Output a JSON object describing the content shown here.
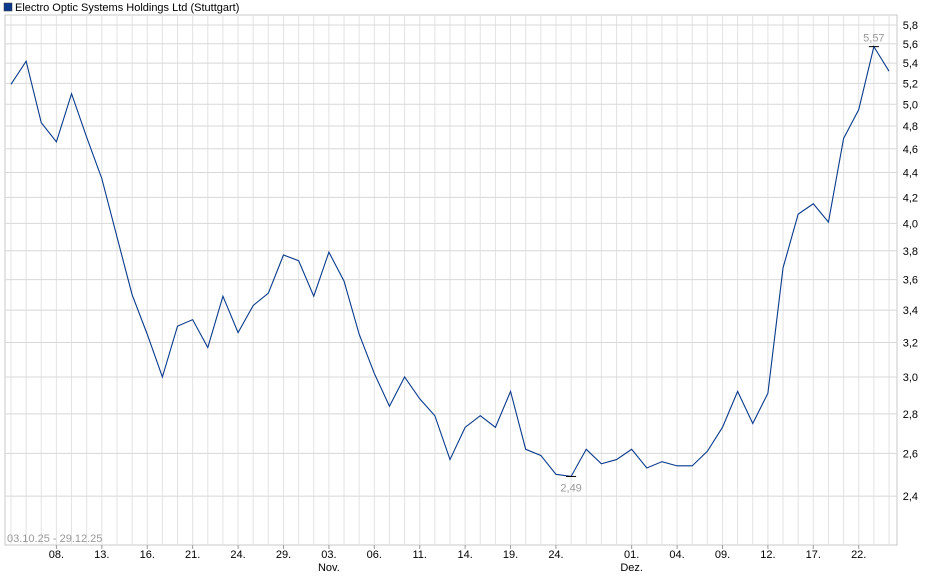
{
  "chart_data": {
    "type": "line",
    "title": "Electro Optic Systems Holdings Ltd (Stuttgart)",
    "date_range": "03.10.25 - 29.12.25",
    "x": [
      "2025-10-03",
      "2025-10-06",
      "2025-10-07",
      "2025-10-08",
      "2025-10-09",
      "2025-10-10",
      "2025-10-13",
      "2025-10-14",
      "2025-10-15",
      "2025-10-16",
      "2025-10-17",
      "2025-10-20",
      "2025-10-21",
      "2025-10-22",
      "2025-10-23",
      "2025-10-24",
      "2025-10-27",
      "2025-10-28",
      "2025-10-29",
      "2025-10-30",
      "2025-10-31",
      "2025-11-03",
      "2025-11-04",
      "2025-11-05",
      "2025-11-06",
      "2025-11-07",
      "2025-11-10",
      "2025-11-11",
      "2025-11-12",
      "2025-11-13",
      "2025-11-14",
      "2025-11-17",
      "2025-11-18",
      "2025-11-19",
      "2025-11-20",
      "2025-11-21",
      "2025-11-24",
      "2025-11-25",
      "2025-11-26",
      "2025-11-27",
      "2025-11-28",
      "2025-12-01",
      "2025-12-02",
      "2025-12-03",
      "2025-12-04",
      "2025-12-05",
      "2025-12-08",
      "2025-12-09",
      "2025-12-10",
      "2025-12-11",
      "2025-12-12",
      "2025-12-15",
      "2025-12-16",
      "2025-12-17",
      "2025-12-18",
      "2025-12-19",
      "2025-12-22",
      "2025-12-23",
      "2025-12-29"
    ],
    "values": [
      5.19,
      5.42,
      4.83,
      4.66,
      5.1,
      4.7,
      4.35,
      3.9,
      3.5,
      3.25,
      3.0,
      3.3,
      3.34,
      3.17,
      3.49,
      3.26,
      3.43,
      3.51,
      3.77,
      3.73,
      3.49,
      3.79,
      3.59,
      3.25,
      3.02,
      2.84,
      3.0,
      2.88,
      2.79,
      2.57,
      2.73,
      2.79,
      2.73,
      2.92,
      2.62,
      2.59,
      2.5,
      2.49,
      2.62,
      2.55,
      2.57,
      2.62,
      2.53,
      2.56,
      2.54,
      2.54,
      2.61,
      2.73,
      2.92,
      2.75,
      2.91,
      3.68,
      4.07,
      4.15,
      4.01,
      4.69,
      4.95,
      5.57,
      5.32
    ],
    "value_labels": [
      null,
      null,
      null,
      null,
      null,
      null,
      null,
      null,
      null,
      null,
      null,
      null,
      null,
      null,
      null,
      null,
      null,
      null,
      null,
      null,
      null,
      null,
      null,
      null,
      null,
      null,
      null,
      null,
      null,
      null,
      null,
      null,
      null,
      null,
      null,
      null,
      null,
      "2,49",
      null,
      null,
      null,
      null,
      null,
      null,
      null,
      null,
      null,
      null,
      null,
      null,
      null,
      null,
      null,
      null,
      null,
      null,
      null,
      "5,57",
      null
    ],
    "color": "#0a3a8c",
    "log_scale": true,
    "grid": true,
    "ylim": [
      2.19,
      5.91
    ],
    "yticks": [
      {
        "value": 2.4,
        "label": "2,4"
      },
      {
        "value": 2.6,
        "label": "2,6"
      },
      {
        "value": 2.8,
        "label": "2,8"
      },
      {
        "value": 3.0,
        "label": "3,0"
      },
      {
        "value": 3.2,
        "label": "3,2"
      },
      {
        "value": 3.4,
        "label": "3,4"
      },
      {
        "value": 3.6,
        "label": "3,6"
      },
      {
        "value": 3.8,
        "label": "3,8"
      },
      {
        "value": 4.0,
        "label": "4,0"
      },
      {
        "value": 4.2,
        "label": "4,2"
      },
      {
        "value": 4.4,
        "label": "4,4"
      },
      {
        "value": 4.6,
        "label": "4,6"
      },
      {
        "value": 4.8,
        "label": "4,8"
      },
      {
        "value": 5.0,
        "label": "5,0"
      },
      {
        "value": 5.2,
        "label": "5,2"
      },
      {
        "value": 5.4,
        "label": "5,4"
      },
      {
        "value": 5.6,
        "label": "5,6"
      },
      {
        "value": 5.8,
        "label": "5,8"
      }
    ],
    "xticks": [
      {
        "value": "2025-10-08",
        "label": "08."
      },
      {
        "value": "2025-10-13",
        "label": "13."
      },
      {
        "value": "2025-10-16",
        "label": "16."
      },
      {
        "value": "2025-10-21",
        "label": "21."
      },
      {
        "value": "2025-10-24",
        "label": "24."
      },
      {
        "value": "2025-10-29",
        "label": "29."
      },
      {
        "value": "2025-11-03",
        "label": "03."
      },
      {
        "value": "2025-11-06",
        "label": "06."
      },
      {
        "value": "2025-11-11",
        "label": "11."
      },
      {
        "value": "2025-11-14",
        "label": "14."
      },
      {
        "value": "2025-11-19",
        "label": "19."
      },
      {
        "value": "2025-11-24",
        "label": "24."
      },
      {
        "value": "2025-12-01",
        "label": "01."
      },
      {
        "value": "2025-12-04",
        "label": "04."
      },
      {
        "value": "2025-12-09",
        "label": "09."
      },
      {
        "value": "2025-12-12",
        "label": "12."
      },
      {
        "value": "2025-12-17",
        "label": "17."
      },
      {
        "value": "2025-12-22",
        "label": "22."
      }
    ],
    "month_labels": [
      {
        "value": "2025-11-03",
        "label": "Nov."
      },
      {
        "value": "2025-12-01",
        "label": "Dez."
      }
    ]
  }
}
